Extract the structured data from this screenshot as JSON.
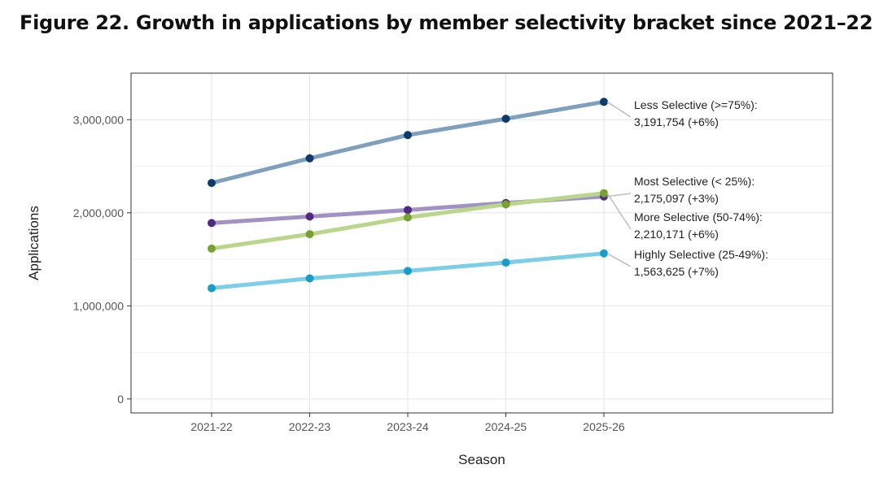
{
  "title": "Figure 22. Growth in applications by member selectivity bracket since 2021–22",
  "chart_data": {
    "type": "line",
    "xlabel": "Season",
    "ylabel": "Applications",
    "categories": [
      "2021-22",
      "2022-23",
      "2023-24",
      "2024-25",
      "2025-26"
    ],
    "ylim": [
      -150000,
      3500000
    ],
    "yticks": [
      0,
      1000000,
      2000000,
      3000000
    ],
    "ytick_labels": [
      "0",
      "1,000,000",
      "2,000,000",
      "3,000,000"
    ],
    "grid": true,
    "series": [
      {
        "name": "Less Selective (>=75%)",
        "values": [
          2320000,
          2585000,
          2835000,
          3010000,
          3191754
        ],
        "line_color": "#7f9fbf",
        "point_color": "#0d3b6e",
        "label_lines": [
          "Less Selective (>=75%):",
          "3,191,754 (+6%)"
        ]
      },
      {
        "name": "Most Selective (< 25%)",
        "values": [
          1890000,
          1960000,
          2030000,
          2105000,
          2175097
        ],
        "line_color": "#a291c4",
        "point_color": "#4e2a84",
        "label_lines": [
          "Most Selective (< 25%):",
          "2,175,097 (+3%)"
        ]
      },
      {
        "name": "More Selective (50-74%)",
        "values": [
          1615000,
          1770000,
          1950000,
          2090000,
          2210171
        ],
        "line_color": "#b9d68a",
        "point_color": "#78a22f",
        "label_lines": [
          "More Selective (50-74%):",
          "2,210,171 (+6%)"
        ]
      },
      {
        "name": "Highly Selective (25-49%)",
        "values": [
          1190000,
          1295000,
          1375000,
          1465000,
          1563625
        ],
        "line_color": "#7ccde6",
        "point_color": "#1a9cc9",
        "label_lines": [
          "Highly Selective (25-49%):",
          "1,563,625 (+7%)"
        ]
      }
    ]
  }
}
